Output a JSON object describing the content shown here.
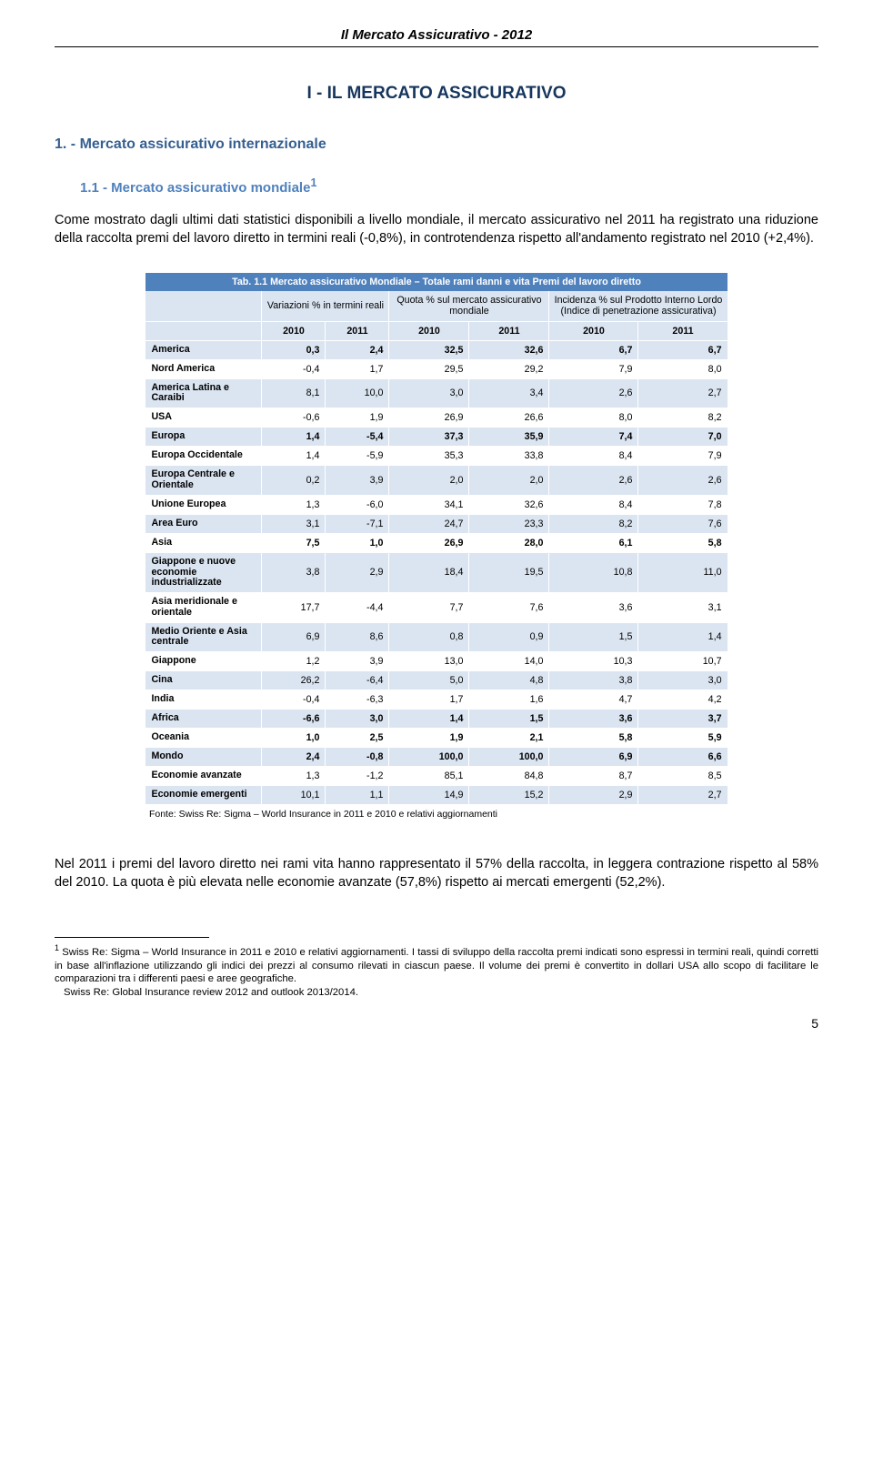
{
  "running_header": "Il Mercato Assicurativo - 2012",
  "h1": "I - IL MERCATO ASSICURATIVO",
  "h2": "1. - Mercato assicurativo internazionale",
  "h3": "1.1 - Mercato assicurativo mondiale",
  "sup1": "1",
  "para1": "Come mostrato dagli ultimi dati statistici disponibili a livello mondiale, il mercato assicurativo nel 2011 ha registrato una riduzione della raccolta premi del lavoro diretto in termini reali (-0,8%), in controtendenza rispetto all'andamento registrato nel 2010 (+2,4%).",
  "table": {
    "caption": "Tab. 1.1 Mercato assicurativo Mondiale – Totale rami danni e vita Premi del lavoro diretto",
    "group_headers": [
      "Variazioni % in termini reali",
      "Quota % sul mercato assicurativo mondiale",
      "Incidenza % sul Prodotto Interno Lordo (Indice di penetrazione assicurativa)"
    ],
    "year_headers": [
      "2010",
      "2011",
      "2010",
      "2011",
      "2010",
      "2011"
    ],
    "rows": [
      {
        "label": "America",
        "bold": true,
        "cells": [
          "0,3",
          "2,4",
          "32,5",
          "32,6",
          "6,7",
          "6,7"
        ]
      },
      {
        "label": "Nord America",
        "cells": [
          "-0,4",
          "1,7",
          "29,5",
          "29,2",
          "7,9",
          "8,0"
        ]
      },
      {
        "label": "America Latina e Caraibi",
        "cells": [
          "8,1",
          "10,0",
          "3,0",
          "3,4",
          "2,6",
          "2,7"
        ]
      },
      {
        "label": "USA",
        "cells": [
          "-0,6",
          "1,9",
          "26,9",
          "26,6",
          "8,0",
          "8,2"
        ]
      },
      {
        "label": "Europa",
        "bold": true,
        "cells": [
          "1,4",
          "-5,4",
          "37,3",
          "35,9",
          "7,4",
          "7,0"
        ]
      },
      {
        "label": "Europa Occidentale",
        "cells": [
          "1,4",
          "-5,9",
          "35,3",
          "33,8",
          "8,4",
          "7,9"
        ]
      },
      {
        "label": "Europa Centrale e Orientale",
        "cells": [
          "0,2",
          "3,9",
          "2,0",
          "2,0",
          "2,6",
          "2,6"
        ]
      },
      {
        "label": "Unione Europea",
        "cells": [
          "1,3",
          "-6,0",
          "34,1",
          "32,6",
          "8,4",
          "7,8"
        ]
      },
      {
        "label": "Area Euro",
        "cells": [
          "3,1",
          "-7,1",
          "24,7",
          "23,3",
          "8,2",
          "7,6"
        ]
      },
      {
        "label": "Asia",
        "bold": true,
        "cells": [
          "7,5",
          "1,0",
          "26,9",
          "28,0",
          "6,1",
          "5,8"
        ]
      },
      {
        "label": "Giappone e nuove economie industrializzate",
        "cells": [
          "3,8",
          "2,9",
          "18,4",
          "19,5",
          "10,8",
          "11,0"
        ]
      },
      {
        "label": "Asia meridionale e orientale",
        "cells": [
          "17,7",
          "-4,4",
          "7,7",
          "7,6",
          "3,6",
          "3,1"
        ]
      },
      {
        "label": "Medio Oriente e Asia centrale",
        "cells": [
          "6,9",
          "8,6",
          "0,8",
          "0,9",
          "1,5",
          "1,4"
        ]
      },
      {
        "label": "Giappone",
        "cells": [
          "1,2",
          "3,9",
          "13,0",
          "14,0",
          "10,3",
          "10,7"
        ]
      },
      {
        "label": "Cina",
        "cells": [
          "26,2",
          "-6,4",
          "5,0",
          "4,8",
          "3,8",
          "3,0"
        ]
      },
      {
        "label": "India",
        "cells": [
          "-0,4",
          "-6,3",
          "1,7",
          "1,6",
          "4,7",
          "4,2"
        ]
      },
      {
        "label": "Africa",
        "bold": true,
        "cells": [
          "-6,6",
          "3,0",
          "1,4",
          "1,5",
          "3,6",
          "3,7"
        ]
      },
      {
        "label": "Oceania",
        "bold": true,
        "cells": [
          "1,0",
          "2,5",
          "1,9",
          "2,1",
          "5,8",
          "5,9"
        ]
      },
      {
        "label": "Mondo",
        "bold": true,
        "cells": [
          "2,4",
          "-0,8",
          "100,0",
          "100,0",
          "6,9",
          "6,6"
        ]
      },
      {
        "label": "Economie avanzate",
        "cells": [
          "1,3",
          "-1,2",
          "85,1",
          "84,8",
          "8,7",
          "8,5"
        ]
      },
      {
        "label": "Economie emergenti",
        "cells": [
          "10,1",
          "1,1",
          "14,9",
          "15,2",
          "2,9",
          "2,7"
        ]
      }
    ],
    "source": "Fonte: Swiss Re: Sigma – World Insurance in 2011 e 2010 e relativi aggiornamenti"
  },
  "para2": "Nel 2011 i premi del lavoro diretto nei rami vita hanno rappresentato il 57% della raccolta, in leggera contrazione rispetto al 58% del 2010. La quota è più elevata nelle economie avanzate (57,8%) rispetto ai mercati emergenti (52,2%).",
  "footnote": {
    "marker": "1",
    "line1": "Swiss Re: Sigma – World Insurance in 2011 e 2010 e relativi aggiornamenti. I tassi di sviluppo della raccolta premi indicati sono espressi in termini reali, quindi corretti in base all'inflazione utilizzando gli indici dei prezzi al consumo rilevati in ciascun paese. Il volume dei premi è convertito in dollari USA allo scopo di facilitare le comparazioni tra i differenti paesi e aree geografiche.",
    "line2": "Swiss Re: Global Insurance review 2012 and outlook 2013/2014."
  },
  "page_number": "5",
  "colors": {
    "h1": "#17365d",
    "h2": "#365f91",
    "h3": "#4f81bd",
    "table_header_bg": "#4f81bd",
    "table_band_bg": "#dbe5f1"
  }
}
